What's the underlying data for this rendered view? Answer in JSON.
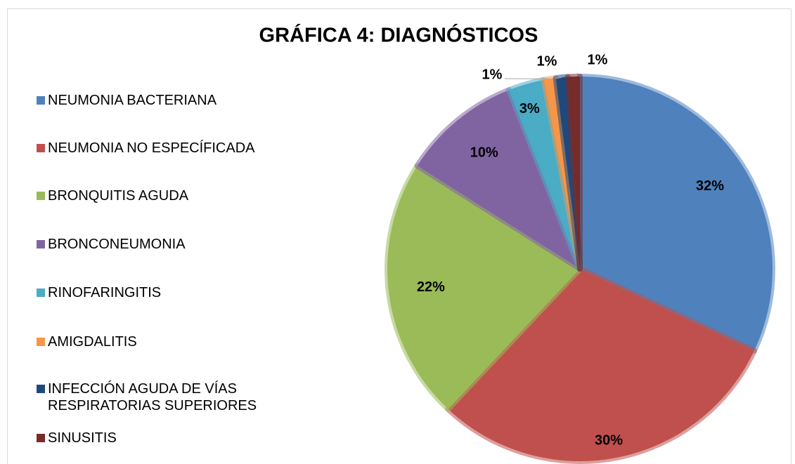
{
  "chart_data": {
    "type": "pie",
    "title": "GRÁFICA 4: DIAGNÓSTICOS",
    "categories": [
      "NEUMONIA BACTERIANA",
      "NEUMONIA NO ESPECÍFICADA",
      "BRONQUITIS AGUDA",
      "BRONCONEUMONIA",
      "RINOFARINGITIS",
      "AMIGDALITIS",
      "INFECCIÓN AGUDA DE VÍAS RESPIRATORIAS SUPERIORES",
      "SINUSITIS"
    ],
    "values": [
      32,
      30,
      22,
      10,
      3,
      1,
      1,
      1
    ],
    "value_labels": [
      "32%",
      "30%",
      "22%",
      "10%",
      "3%",
      "1%",
      "1%",
      "1%"
    ],
    "colors": [
      "#4f81bd",
      "#c0504d",
      "#9bbb59",
      "#8064a2",
      "#4bacc6",
      "#f79646",
      "#1f497d",
      "#772c2a"
    ],
    "legend": "left"
  }
}
